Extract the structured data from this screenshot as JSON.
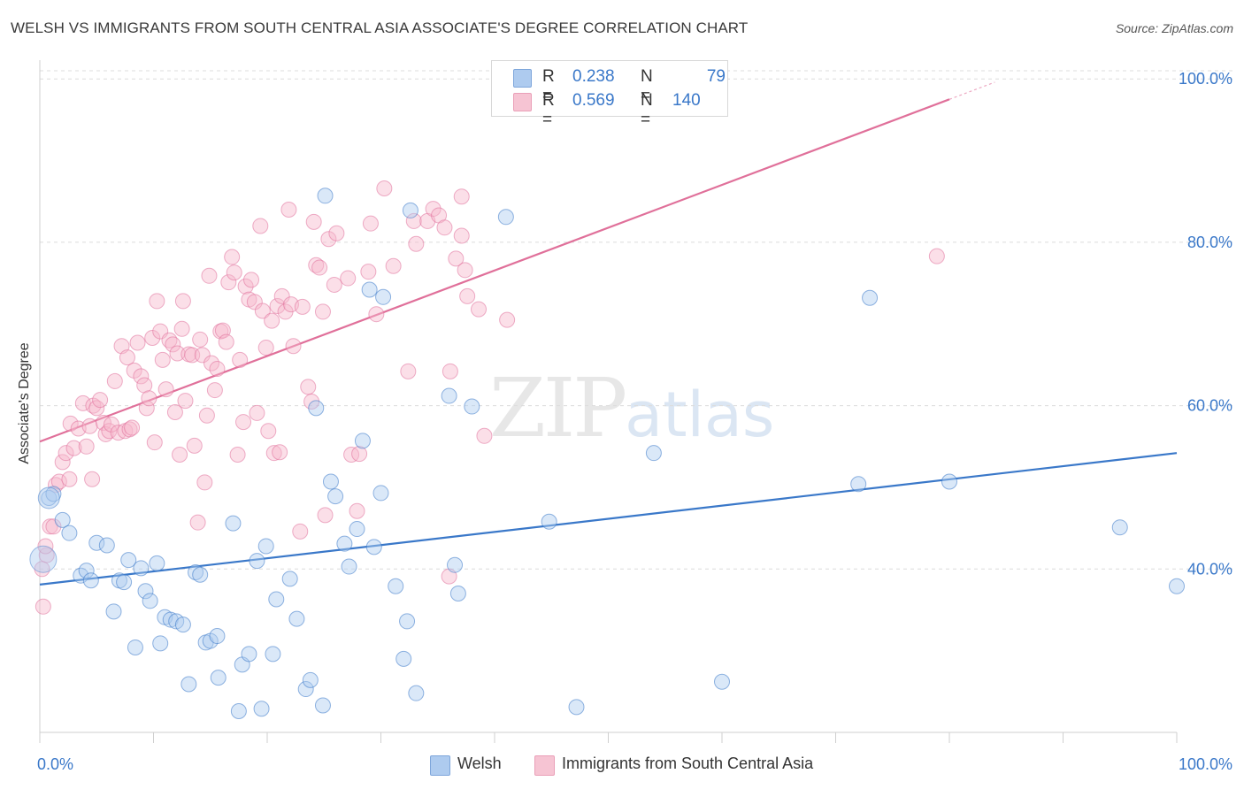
{
  "header": {
    "title": "WELSH VS IMMIGRANTS FROM SOUTH CENTRAL ASIA ASSOCIATE'S DEGREE CORRELATION CHART",
    "source": "Source: ZipAtlas.com"
  },
  "watermark": {
    "part1": "ZIP",
    "part2": "atlas"
  },
  "legend": {
    "rows": [
      {
        "r_key": "R =",
        "r_value": "0.238",
        "n_key": "N =",
        "n_value": "79"
      },
      {
        "r_key": "R =",
        "r_value": "0.569",
        "n_key": "N =",
        "n_value": "140"
      }
    ]
  },
  "colors": {
    "blue": "#3a78c9",
    "blue_fill": "#aecbef",
    "pink": "#e0709a",
    "pink_fill": "#f6b8cb",
    "grid": "#dcdcdc"
  },
  "chart_data": {
    "type": "scatter",
    "title": "WELSH VS IMMIGRANTS FROM SOUTH CENTRAL ASIA ASSOCIATE'S DEGREE CORRELATION CHART",
    "xlabel": "",
    "ylabel": "Associate's Degree",
    "xlim": [
      0,
      100
    ],
    "ylim": [
      20,
      101
    ],
    "x_tick_labels": [
      "0.0%",
      "100.0%"
    ],
    "y_ticks": [
      40,
      60,
      80,
      100
    ],
    "y_tick_labels": [
      "40.0%",
      "60.0%",
      "80.0%",
      "100.0%"
    ],
    "grid": true,
    "legend_position": "top-center",
    "series": [
      {
        "name": "Welsh",
        "color": "#3a78c9",
        "fill": "#aecbef",
        "trend": {
          "x": [
            0,
            100
          ],
          "y": [
            38.1,
            54.2
          ]
        },
        "points": [
          [
            0.8,
            48.7
          ],
          [
            1.2,
            49.2
          ],
          [
            2.0,
            46.0
          ],
          [
            2.6,
            44.4
          ],
          [
            3.6,
            39.2
          ],
          [
            4.1,
            39.8
          ],
          [
            4.5,
            38.6
          ],
          [
            5.0,
            43.2
          ],
          [
            5.9,
            42.9
          ],
          [
            6.5,
            34.8
          ],
          [
            7.0,
            38.6
          ],
          [
            7.4,
            38.4
          ],
          [
            7.8,
            41.1
          ],
          [
            8.4,
            30.4
          ],
          [
            8.9,
            40.1
          ],
          [
            9.3,
            37.3
          ],
          [
            9.7,
            36.1
          ],
          [
            10.3,
            40.7
          ],
          [
            10.6,
            30.9
          ],
          [
            11.0,
            34.1
          ],
          [
            11.5,
            33.8
          ],
          [
            12.0,
            33.6
          ],
          [
            12.6,
            33.2
          ],
          [
            13.1,
            25.9
          ],
          [
            13.7,
            39.6
          ],
          [
            14.1,
            39.3
          ],
          [
            14.6,
            31.0
          ],
          [
            15.0,
            31.2
          ],
          [
            15.6,
            31.8
          ],
          [
            15.7,
            26.7
          ],
          [
            17.0,
            45.6
          ],
          [
            17.5,
            22.6
          ],
          [
            17.8,
            28.3
          ],
          [
            18.4,
            29.6
          ],
          [
            19.1,
            41.0
          ],
          [
            19.5,
            22.9
          ],
          [
            19.9,
            42.8
          ],
          [
            20.5,
            29.6
          ],
          [
            20.8,
            36.3
          ],
          [
            22.0,
            38.8
          ],
          [
            22.6,
            33.9
          ],
          [
            23.4,
            25.3
          ],
          [
            23.8,
            26.4
          ],
          [
            24.3,
            59.7
          ],
          [
            24.9,
            23.3
          ],
          [
            25.1,
            85.7
          ],
          [
            25.6,
            50.7
          ],
          [
            26.0,
            48.9
          ],
          [
            26.8,
            43.1
          ],
          [
            27.2,
            40.3
          ],
          [
            27.9,
            44.9
          ],
          [
            28.4,
            55.7
          ],
          [
            29.0,
            74.2
          ],
          [
            29.4,
            42.7
          ],
          [
            30.0,
            49.3
          ],
          [
            30.2,
            73.3
          ],
          [
            31.3,
            37.9
          ],
          [
            32.0,
            29.0
          ],
          [
            32.3,
            33.6
          ],
          [
            32.6,
            83.9
          ],
          [
            33.1,
            24.8
          ],
          [
            36.0,
            61.2
          ],
          [
            36.5,
            40.5
          ],
          [
            36.8,
            37.0
          ],
          [
            38.0,
            59.9
          ],
          [
            41.0,
            83.1
          ],
          [
            44.8,
            45.8
          ],
          [
            47.2,
            23.1
          ],
          [
            54.0,
            54.2
          ],
          [
            60.0,
            26.2
          ],
          [
            72.0,
            50.4
          ],
          [
            73.0,
            73.2
          ],
          [
            80.0,
            50.7
          ],
          [
            95.0,
            45.1
          ],
          [
            100.0,
            37.9
          ]
        ]
      },
      {
        "name": "Immigrants from South Central Asia",
        "color": "#e0709a",
        "fill": "#f6b8cb",
        "trend": {
          "x": [
            0,
            80
          ],
          "y": [
            55.6,
            97.5
          ]
        },
        "trend_dashed": {
          "x": [
            80,
            84
          ],
          "y": [
            97.5,
            99.6
          ]
        },
        "points": [
          [
            0.3,
            35.4
          ],
          [
            0.6,
            41.7
          ],
          [
            0.9,
            45.2
          ],
          [
            1.2,
            45.2
          ],
          [
            1.4,
            50.3
          ],
          [
            1.7,
            50.7
          ],
          [
            2.0,
            53.1
          ],
          [
            2.3,
            54.2
          ],
          [
            2.6,
            51.0
          ],
          [
            2.7,
            57.8
          ],
          [
            3.0,
            54.8
          ],
          [
            3.4,
            57.2
          ],
          [
            3.8,
            60.3
          ],
          [
            4.1,
            55.0
          ],
          [
            4.4,
            57.5
          ],
          [
            4.6,
            51.0
          ],
          [
            4.7,
            60.0
          ],
          [
            5.0,
            59.7
          ],
          [
            5.3,
            60.7
          ],
          [
            5.6,
            57.9
          ],
          [
            5.8,
            56.5
          ],
          [
            6.1,
            56.9
          ],
          [
            6.3,
            57.7
          ],
          [
            6.6,
            63.0
          ],
          [
            6.9,
            56.7
          ],
          [
            7.2,
            67.3
          ],
          [
            7.5,
            56.9
          ],
          [
            7.7,
            65.9
          ],
          [
            7.9,
            57.1
          ],
          [
            8.1,
            57.3
          ],
          [
            8.3,
            64.3
          ],
          [
            8.6,
            67.7
          ],
          [
            8.9,
            63.6
          ],
          [
            9.2,
            62.5
          ],
          [
            9.4,
            59.7
          ],
          [
            9.6,
            60.9
          ],
          [
            9.9,
            68.3
          ],
          [
            10.1,
            55.5
          ],
          [
            10.3,
            72.8
          ],
          [
            10.6,
            69.1
          ],
          [
            10.8,
            65.6
          ],
          [
            11.1,
            62.0
          ],
          [
            11.4,
            68.0
          ],
          [
            11.7,
            67.5
          ],
          [
            11.9,
            59.2
          ],
          [
            12.1,
            66.4
          ],
          [
            12.3,
            54.0
          ],
          [
            12.5,
            69.4
          ],
          [
            12.6,
            72.8
          ],
          [
            12.8,
            60.6
          ],
          [
            13.1,
            66.3
          ],
          [
            13.4,
            66.2
          ],
          [
            13.6,
            55.1
          ],
          [
            13.9,
            45.7
          ],
          [
            14.1,
            68.1
          ],
          [
            14.3,
            66.2
          ],
          [
            14.5,
            50.6
          ],
          [
            14.7,
            58.8
          ],
          [
            14.9,
            75.9
          ],
          [
            15.1,
            65.2
          ],
          [
            15.4,
            61.9
          ],
          [
            15.6,
            64.5
          ],
          [
            15.9,
            69.1
          ],
          [
            16.1,
            69.2
          ],
          [
            16.4,
            67.8
          ],
          [
            16.6,
            75.1
          ],
          [
            16.9,
            78.2
          ],
          [
            17.1,
            76.3
          ],
          [
            17.4,
            54.0
          ],
          [
            17.6,
            65.6
          ],
          [
            17.9,
            58.0
          ],
          [
            18.1,
            74.6
          ],
          [
            18.4,
            73.0
          ],
          [
            18.6,
            75.4
          ],
          [
            18.9,
            72.7
          ],
          [
            19.1,
            59.1
          ],
          [
            19.4,
            82.0
          ],
          [
            19.6,
            71.6
          ],
          [
            19.9,
            67.1
          ],
          [
            20.1,
            56.9
          ],
          [
            20.4,
            70.4
          ],
          [
            20.6,
            54.2
          ],
          [
            20.9,
            72.2
          ],
          [
            21.1,
            54.3
          ],
          [
            21.3,
            73.4
          ],
          [
            21.6,
            71.5
          ],
          [
            21.9,
            84.0
          ],
          [
            22.1,
            72.4
          ],
          [
            22.3,
            67.3
          ],
          [
            22.9,
            44.6
          ],
          [
            23.1,
            72.1
          ],
          [
            23.6,
            62.3
          ],
          [
            23.9,
            60.5
          ],
          [
            24.1,
            82.5
          ],
          [
            24.3,
            77.2
          ],
          [
            24.6,
            76.9
          ],
          [
            24.9,
            71.5
          ],
          [
            25.1,
            46.6
          ],
          [
            25.4,
            80.4
          ],
          [
            25.9,
            74.8
          ],
          [
            26.1,
            81.1
          ],
          [
            27.1,
            75.6
          ],
          [
            27.4,
            54.0
          ],
          [
            27.9,
            47.1
          ],
          [
            28.1,
            54.1
          ],
          [
            28.9,
            76.4
          ],
          [
            29.1,
            82.3
          ],
          [
            29.6,
            71.2
          ],
          [
            30.3,
            86.6
          ],
          [
            31.1,
            77.1
          ],
          [
            32.4,
            64.2
          ],
          [
            32.9,
            82.6
          ],
          [
            33.1,
            79.8
          ],
          [
            34.1,
            82.6
          ],
          [
            34.6,
            84.1
          ],
          [
            35.1,
            83.3
          ],
          [
            35.6,
            81.8
          ],
          [
            36.1,
            64.2
          ],
          [
            36.6,
            78.0
          ],
          [
            37.1,
            80.8
          ],
          [
            37.1,
            85.6
          ],
          [
            37.4,
            76.6
          ],
          [
            37.6,
            73.4
          ],
          [
            38.6,
            71.8
          ],
          [
            39.1,
            56.3
          ],
          [
            41.1,
            70.5
          ],
          [
            36.0,
            39.1
          ],
          [
            78.9,
            78.3
          ],
          [
            0.2,
            40.0
          ],
          [
            0.5,
            42.8
          ]
        ]
      }
    ]
  }
}
